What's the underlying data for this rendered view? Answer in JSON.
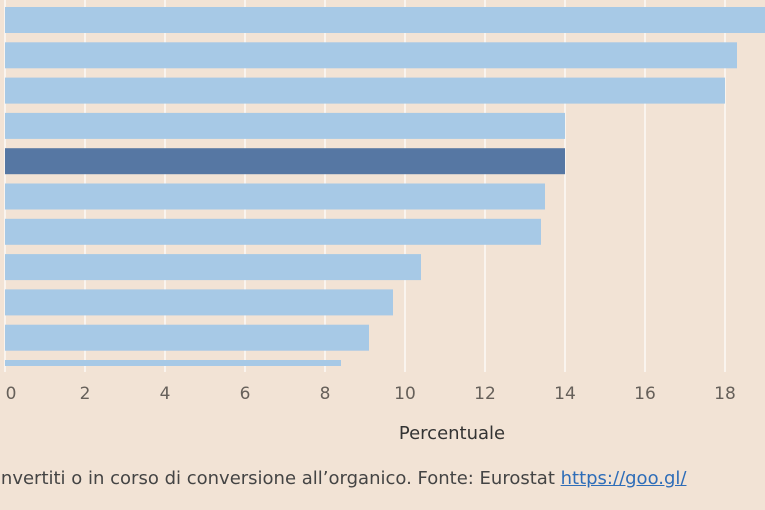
{
  "chart_data": {
    "type": "bar",
    "orientation": "horizontal",
    "values": [
      19.2,
      18.3,
      18.0,
      14.0,
      14.0,
      13.5,
      13.4,
      10.4,
      9.7,
      9.1,
      8.4
    ],
    "highlight_index": 4,
    "xlabel": "Percentuale",
    "xlim": [
      0,
      19
    ],
    "xticks": [
      "0",
      "2",
      "4",
      "6",
      "8",
      "10",
      "12",
      "14",
      "16",
      "18"
    ],
    "grid": true,
    "colors": {
      "bar": "#a7c9e6",
      "highlight": "#5677a3",
      "grid": "#ffffff"
    }
  },
  "footer": {
    "note_text": "convertiti o in corso di conversione all’organico. Fonte: Eurostat ",
    "link_text": "https://goo.gl/"
  }
}
